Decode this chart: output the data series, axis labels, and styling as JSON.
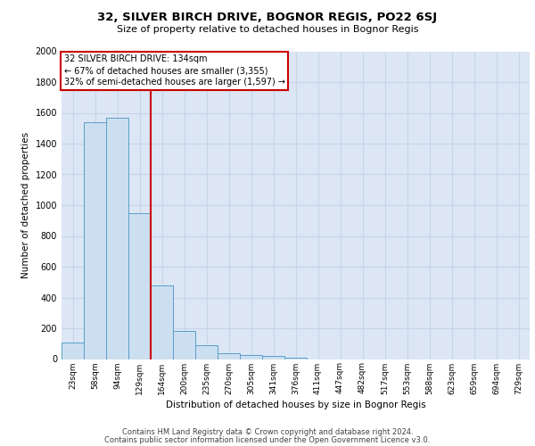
{
  "title1": "32, SILVER BIRCH DRIVE, BOGNOR REGIS, PO22 6SJ",
  "title2": "Size of property relative to detached houses in Bognor Regis",
  "xlabel": "Distribution of detached houses by size in Bognor Regis",
  "ylabel": "Number of detached properties",
  "categories": [
    "23sqm",
    "58sqm",
    "94sqm",
    "129sqm",
    "164sqm",
    "200sqm",
    "235sqm",
    "270sqm",
    "305sqm",
    "341sqm",
    "376sqm",
    "411sqm",
    "447sqm",
    "482sqm",
    "517sqm",
    "553sqm",
    "588sqm",
    "623sqm",
    "659sqm",
    "694sqm",
    "729sqm"
  ],
  "values": [
    110,
    1540,
    1570,
    950,
    480,
    180,
    90,
    40,
    25,
    18,
    8,
    0,
    0,
    0,
    0,
    0,
    0,
    0,
    0,
    0,
    0
  ],
  "bar_color": "#ccdff0",
  "bar_edge_color": "#5a9ec9",
  "grid_color": "#c8d4e8",
  "bg_color": "#dce6f5",
  "vline_color": "#cc0000",
  "vline_x": 3.5,
  "annotation_title": "32 SILVER BIRCH DRIVE: 134sqm",
  "annotation_line1": "← 67% of detached houses are smaller (3,355)",
  "annotation_line2": "32% of semi-detached houses are larger (1,597) →",
  "annotation_box_color": "#cc0000",
  "footer1": "Contains HM Land Registry data © Crown copyright and database right 2024.",
  "footer2": "Contains public sector information licensed under the Open Government Licence v3.0.",
  "ylim": [
    0,
    2000
  ],
  "yticks": [
    0,
    200,
    400,
    600,
    800,
    1000,
    1200,
    1400,
    1600,
    1800,
    2000
  ],
  "title1_fontsize": 9.5,
  "title2_fontsize": 8,
  "axis_fontsize": 7.5,
  "tick_fontsize": 6.5,
  "footer_fontsize": 6
}
